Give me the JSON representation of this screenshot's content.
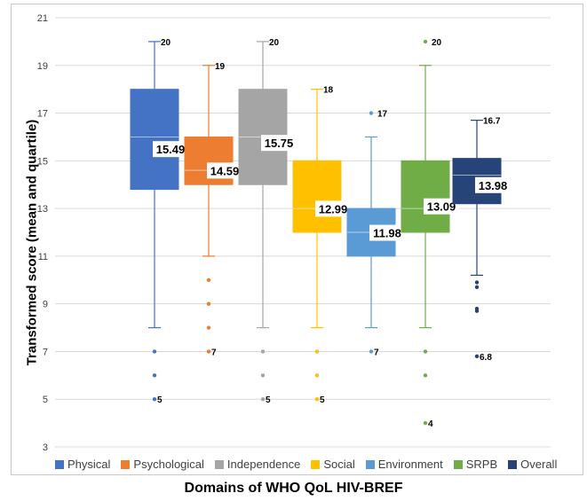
{
  "chart_data": {
    "type": "box",
    "xlabel": "Domains of WHO QoL HIV-BREF",
    "ylabel": "Transformed score (mean and quartile)",
    "ylim": [
      3,
      21
    ],
    "yticks": [
      3,
      5,
      7,
      9,
      11,
      13,
      15,
      17,
      19,
      21
    ],
    "grid": true,
    "legend_position": "bottom",
    "series": [
      {
        "name": "Physical",
        "color": "#4472c4",
        "q1": 13.8,
        "median": 16,
        "q3": 18,
        "whisker_low": 8,
        "whisker_high": 20,
        "mean": 15.49,
        "mean_label": "15.49",
        "outliers": [
          7,
          6,
          5
        ],
        "max_label": "20",
        "min_label": "5"
      },
      {
        "name": "Psychological",
        "color": "#ed7d31",
        "q1": 14,
        "median": 14.6,
        "q3": 16,
        "whisker_low": 11,
        "whisker_high": 19,
        "mean": 14.59,
        "mean_label": "14.59",
        "outliers": [
          10,
          9,
          8,
          7
        ],
        "max_label": "19",
        "min_label": "7"
      },
      {
        "name": "Independence",
        "color": "#a5a5a5",
        "q1": 14,
        "median": 16,
        "q3": 18,
        "whisker_low": 8,
        "whisker_high": 20,
        "mean": 15.75,
        "mean_label": "15.75",
        "outliers": [
          7,
          6,
          5
        ],
        "max_label": "20",
        "min_label": "5"
      },
      {
        "name": "Social",
        "color": "#ffc000",
        "q1": 12,
        "median": 13,
        "q3": 15,
        "whisker_low": 8,
        "whisker_high": 18,
        "mean": 12.99,
        "mean_label": "12.99",
        "outliers": [
          7,
          6,
          5
        ],
        "max_label": "18",
        "min_label": "5"
      },
      {
        "name": "Environment",
        "color": "#5b9bd5",
        "q1": 11,
        "median": 12,
        "q3": 13,
        "whisker_low": 8,
        "whisker_high": 16,
        "mean": 11.98,
        "mean_label": "11.98",
        "outliers": [
          17,
          7
        ],
        "max_label": "17",
        "min_label": "7"
      },
      {
        "name": "SRPB",
        "color": "#70ad47",
        "q1": 12,
        "median": 13,
        "q3": 15,
        "whisker_low": 8,
        "whisker_high": 19,
        "mean": 13.09,
        "mean_label": "13.09",
        "outliers": [
          20,
          7,
          6,
          4
        ],
        "max_label": "20",
        "min_label": "4"
      },
      {
        "name": "Overall",
        "color": "#264478",
        "q1": 13.2,
        "median": 14.4,
        "q3": 15.1,
        "whisker_low": 10.2,
        "whisker_high": 16.7,
        "mean": 13.98,
        "mean_label": "13.98",
        "outliers": [
          9.9,
          9.7,
          8.8,
          8.7,
          6.8
        ],
        "max_label": "16.7",
        "min_label": "6.8"
      }
    ]
  }
}
